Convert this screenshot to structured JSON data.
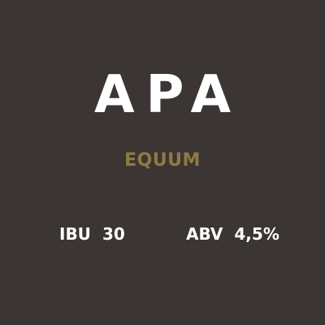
{
  "beer": {
    "style": "APA",
    "brand": "EQUUM"
  },
  "stats": {
    "ibu_label": "IBU",
    "ibu_value": "30",
    "abv_label": "ABV",
    "abv_value": "4,5%"
  },
  "colors": {
    "background": "#3b3534",
    "title": "#ffffff",
    "brand": "#8f7a43",
    "stats": "#ffffff"
  }
}
